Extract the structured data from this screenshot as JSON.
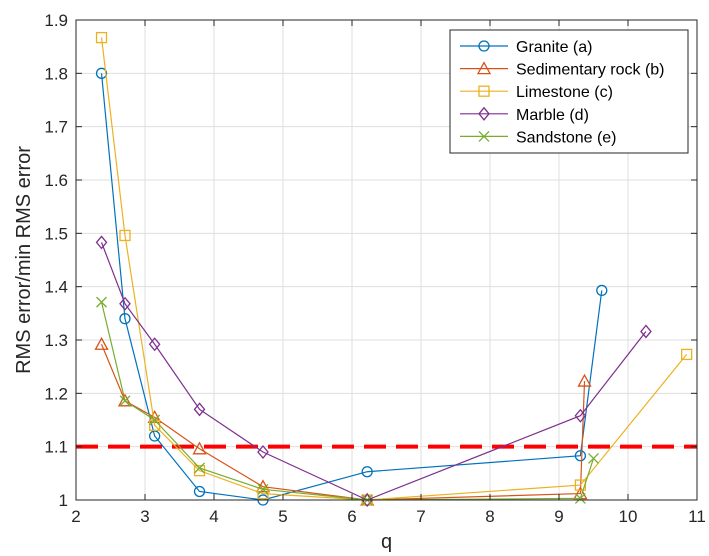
{
  "chart_data": {
    "type": "line",
    "xlabel": "q",
    "ylabel": "RMS error/min RMS error",
    "xlim": [
      2,
      11
    ],
    "ylim": [
      1,
      1.9
    ],
    "xticks": [
      2,
      3,
      4,
      5,
      6,
      7,
      8,
      9,
      10,
      11
    ],
    "yticks": [
      1,
      1.1,
      1.2,
      1.3,
      1.4,
      1.5,
      1.6,
      1.7,
      1.8,
      1.9
    ],
    "xtick_labels": [
      "2",
      "3",
      "4",
      "5",
      "6",
      "7",
      "8",
      "9",
      "10",
      "11"
    ],
    "ytick_labels": [
      "1",
      "1.1",
      "1.2",
      "1.3",
      "1.4",
      "1.5",
      "1.6",
      "1.7",
      "1.8",
      "1.9"
    ],
    "grid": true,
    "legend_position": "top-right",
    "threshold": {
      "y": 1.1,
      "color": "#ff0000",
      "style": "dashed"
    },
    "series": [
      {
        "name": "Granite (a)",
        "color": "#0072bd",
        "marker": "circle",
        "x": [
          2.37,
          2.71,
          3.14,
          3.79,
          4.71,
          6.22,
          9.31,
          9.62
        ],
        "y": [
          1.8,
          1.34,
          1.12,
          1.016,
          1.0,
          1.053,
          1.083,
          1.393
        ]
      },
      {
        "name": "Sedimentary rock (b)",
        "color": "#d95319",
        "marker": "triangle",
        "x": [
          2.37,
          2.71,
          3.14,
          3.79,
          4.71,
          6.22,
          9.31,
          9.37
        ],
        "y": [
          1.292,
          1.186,
          1.155,
          1.096,
          1.025,
          1.0,
          1.012,
          1.223
        ]
      },
      {
        "name": "Limestone (c)",
        "color": "#edb120",
        "marker": "square",
        "x": [
          2.37,
          2.71,
          3.14,
          3.79,
          4.71,
          6.22,
          9.31,
          10.85
        ],
        "y": [
          1.867,
          1.496,
          1.14,
          1.055,
          1.012,
          1.0,
          1.028,
          1.273
        ]
      },
      {
        "name": "Marble (d)",
        "color": "#7e2f8e",
        "marker": "diamond",
        "x": [
          2.37,
          2.71,
          3.14,
          3.79,
          4.71,
          6.22,
          9.31,
          10.26
        ],
        "y": [
          1.483,
          1.368,
          1.292,
          1.17,
          1.09,
          1.0,
          1.158,
          1.316
        ]
      },
      {
        "name": "Sandstone (e)",
        "color": "#77ac30",
        "marker": "x",
        "x": [
          2.37,
          2.71,
          3.14,
          3.79,
          4.71,
          6.22,
          9.31,
          9.5
        ],
        "y": [
          1.371,
          1.186,
          1.15,
          1.06,
          1.02,
          1.0,
          1.003,
          1.078
        ]
      }
    ]
  }
}
